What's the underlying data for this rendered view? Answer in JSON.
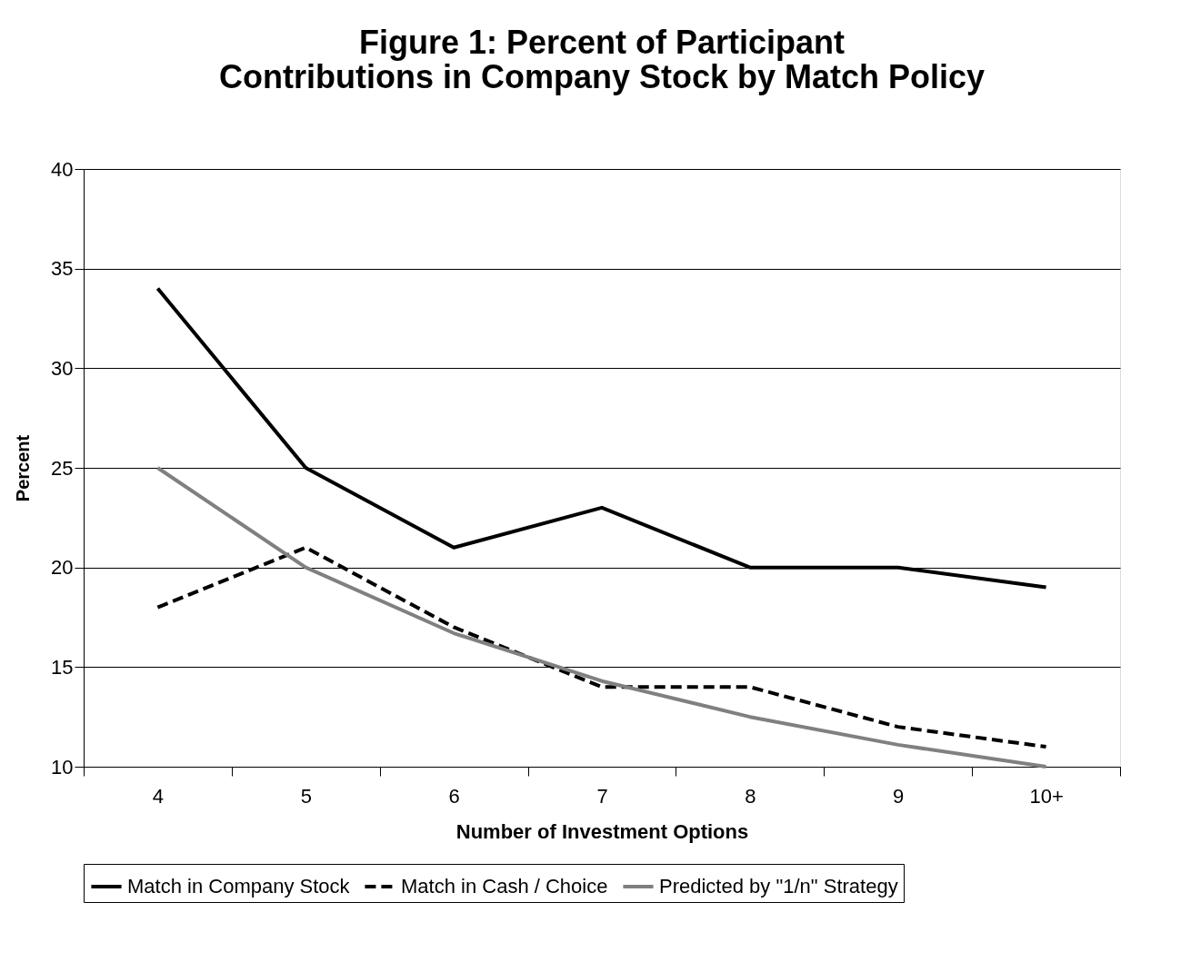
{
  "chart_data": {
    "type": "line",
    "title": "Figure 1:  Percent of Participant Contributions in Company Stock by Match Policy",
    "xlabel": "Number of Investment Options",
    "ylabel": "Percent",
    "categories": [
      "4",
      "5",
      "6",
      "7",
      "8",
      "9",
      "10+"
    ],
    "series": [
      {
        "name": "Match in Company Stock",
        "color": "#000000",
        "line_style": "solid",
        "values": [
          34,
          25,
          21,
          23,
          20,
          20,
          19
        ]
      },
      {
        "name": "Match in Cash / Choice",
        "color": "#000000",
        "line_style": "dashed",
        "values": [
          18,
          21,
          17,
          14,
          14,
          12,
          11
        ]
      },
      {
        "name": "Predicted by \"1/n\" Strategy",
        "color": "#808080",
        "line_style": "solid",
        "values": [
          25,
          20,
          16.7,
          14.3,
          12.5,
          11.1,
          10
        ]
      }
    ],
    "ylim": [
      10,
      40
    ],
    "yticks": [
      10,
      15,
      20,
      25,
      30,
      35,
      40
    ],
    "grid": "y",
    "legend": "bottom",
    "marker": "none"
  }
}
